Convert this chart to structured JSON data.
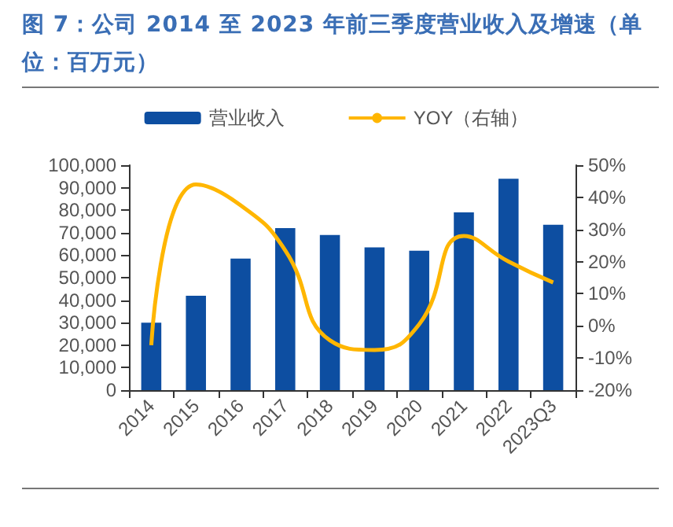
{
  "chart_data": {
    "type": "bar",
    "title": "图 7：公司 2014 至 2023 年前三季度营业收入及增速（单位：百万元）",
    "categories": [
      "2014",
      "2015",
      "2016",
      "2017",
      "2018",
      "2019",
      "2020",
      "2021",
      "2022",
      "2023Q3"
    ],
    "series": [
      {
        "name": "营业收入",
        "color": "#0d4ea1",
        "values": [
          30000,
          42000,
          58500,
          72000,
          69000,
          63500,
          62000,
          79000,
          94000,
          73500
        ]
      },
      {
        "name": "YOY（右轴）",
        "type": "line",
        "axis": "y2",
        "color": "#ffb600",
        "marker": "none",
        "values": [
          -6,
          44,
          37.5,
          23.5,
          -4.5,
          -7.5,
          0.5,
          28,
          20,
          13.5
        ]
      }
    ],
    "ylim": [
      0,
      100000
    ],
    "yticks": [
      0,
      {
        "value": 10000,
        "label": "10,000"
      },
      {
        "value": 20000,
        "label": "20,000"
      },
      {
        "value": 30000,
        "label": "30,000"
      },
      {
        "value": 40000,
        "label": "40,000"
      },
      {
        "value": 50000,
        "label": "50,000"
      },
      {
        "value": 60000,
        "label": "60,000"
      },
      {
        "value": 70000,
        "label": "70,000"
      },
      {
        "value": 80000,
        "label": "80,000"
      },
      {
        "value": 90000,
        "label": "90,000"
      },
      {
        "value": 100000,
        "label": "100,000"
      }
    ],
    "y2lim": [
      -20,
      50
    ],
    "y2ticks": [
      {
        "value": -20,
        "label": "-20%"
      },
      {
        "value": -10,
        "label": "-10%"
      },
      {
        "value": 0,
        "label": "0%"
      },
      {
        "value": 10,
        "label": "10%"
      },
      {
        "value": 20,
        "label": "20%"
      },
      {
        "value": 30,
        "label": "30%"
      },
      {
        "value": 40,
        "label": "40%"
      },
      {
        "value": 50,
        "label": "50%"
      }
    ],
    "legend": "top",
    "grid": false
  }
}
